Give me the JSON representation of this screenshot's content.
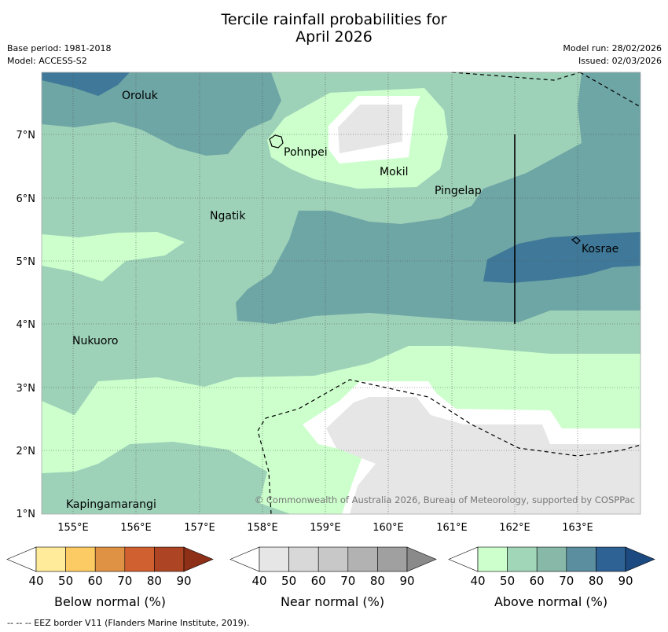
{
  "title": {
    "line1": "Tercile rainfall probabilities for",
    "line2": "April 2026"
  },
  "meta": {
    "base_period": "Base period: 1981-2018",
    "model": "Model: ACCESS-S2",
    "model_run": "Model run: 28/02/2026",
    "issued": "Issued: 02/03/2026"
  },
  "axes": {
    "lat_labels": [
      "7°N",
      "6°N",
      "5°N",
      "4°N",
      "3°N",
      "2°N",
      "1°N"
    ],
    "lon_labels": [
      "155°E",
      "156°E",
      "157°E",
      "158°E",
      "159°E",
      "160°E",
      "161°E",
      "162°E",
      "163°E"
    ]
  },
  "places": [
    "Oroluk",
    "Pohnpei",
    "Mokil",
    "Pingelap",
    "Ngatik",
    "Kosrae",
    "Nukuoro",
    "Kapingamarangi"
  ],
  "copyright": "© Commonwealth of Australia 2026, Bureau of Meteorology, supported by COSPPac",
  "legend": {
    "ticks": [
      "40",
      "50",
      "60",
      "70",
      "80",
      "90"
    ],
    "below_label": "Below normal (%)",
    "near_label": "Near normal (%)",
    "above_label": "Above normal (%)",
    "below_colors": [
      "#ffffff",
      "#ffeb99",
      "#fdcb63",
      "#e09244",
      "#d06030",
      "#ad4524",
      "#8e2f18"
    ],
    "near_colors": [
      "#ffffff",
      "#e6e6e6",
      "#d8d8d8",
      "#c8c8c8",
      "#b2b2b2",
      "#a0a0a0",
      "#8a8a8a"
    ],
    "above_colors": [
      "#ffffff",
      "#ccffcc",
      "#a2d6b8",
      "#88b8a8",
      "#5b8fa0",
      "#2f6294",
      "#1c4a80"
    ]
  },
  "footer": "-- -- -- EEZ border V11 (Flanders Marine Institute, 2019)."
}
